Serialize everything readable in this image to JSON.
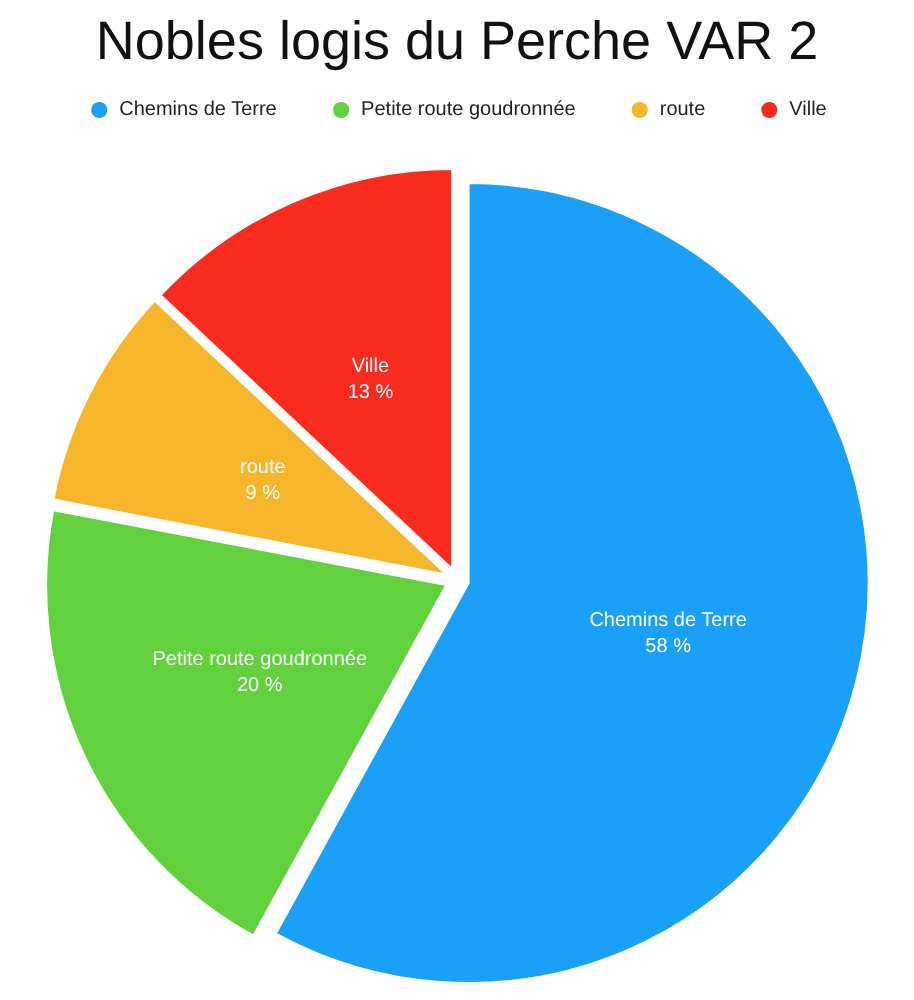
{
  "chart_data": {
    "type": "pie",
    "title": "Nobles logis du Perche VAR 2",
    "categories": [
      "Chemins de Terre",
      "Petite route goudronnée",
      "route",
      "Ville"
    ],
    "values": [
      58,
      20,
      9,
      13
    ],
    "value_labels": [
      "58 %",
      "20 %",
      "9 %",
      "13 %"
    ],
    "colors": [
      "#1aa1f7",
      "#61d23e",
      "#f5b62c",
      "#f92b1e"
    ],
    "legend": "top"
  }
}
